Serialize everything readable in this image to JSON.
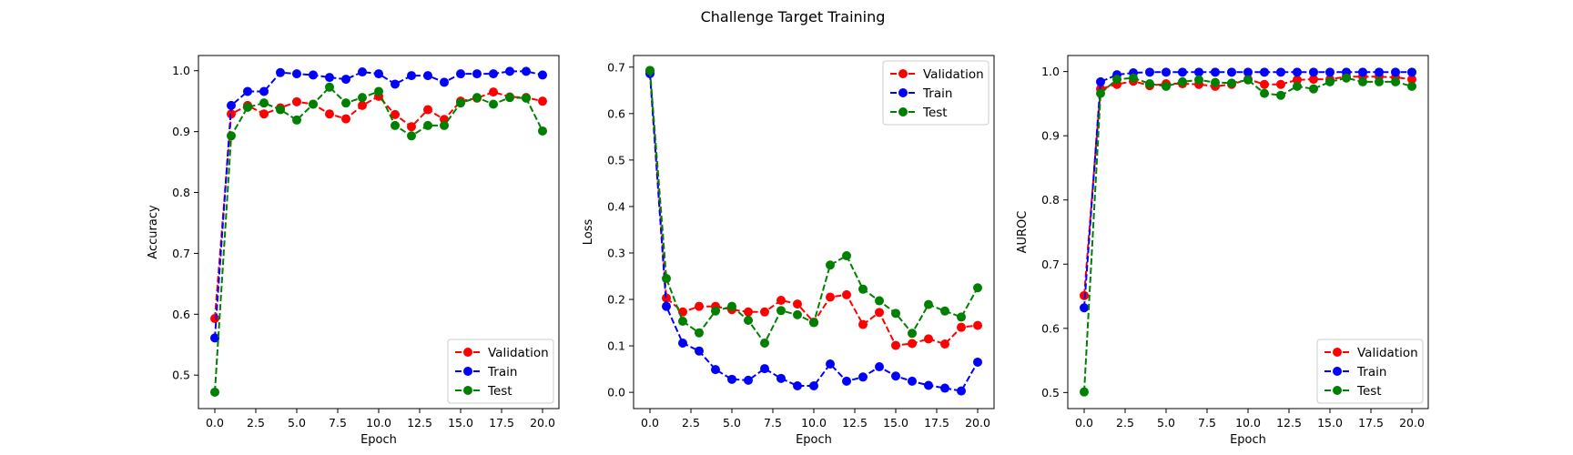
{
  "chart_data": {
    "title": "Challenge Target Training",
    "type": "line",
    "panels": [
      {
        "type": "line",
        "xlabel": "Epoch",
        "ylabel": "Accuracy",
        "xlim": [
          -1,
          21
        ],
        "ylim": [
          0.445,
          1.025
        ],
        "xticks": [
          "0.0",
          "2.5",
          "5.0",
          "7.5",
          "10.0",
          "12.5",
          "15.0",
          "17.5",
          "20.0"
        ],
        "yticks": [
          "0.5",
          "0.6",
          "0.7",
          "0.8",
          "0.9",
          "1.0"
        ],
        "legend": "lower-right",
        "grid": false,
        "series": [
          {
            "name": "Validation",
            "color": "#ff0000",
            "values": [
              0.593,
              0.929,
              0.943,
              0.929,
              0.939,
              0.949,
              0.945,
              0.929,
              0.921,
              0.943,
              0.958,
              0.928,
              0.908,
              0.936,
              0.92,
              0.95,
              0.955,
              0.965,
              0.957,
              0.956,
              0.95
            ]
          },
          {
            "name": "Train",
            "color": "#0000ff",
            "values": [
              0.561,
              0.943,
              0.966,
              0.966,
              0.997,
              0.995,
              0.993,
              0.989,
              0.986,
              0.998,
              0.995,
              0.978,
              0.992,
              0.992,
              0.981,
              0.995,
              0.995,
              0.995,
              0.999,
              0.999,
              0.993
            ]
          },
          {
            "name": "Test",
            "color": "#008000",
            "values": [
              0.472,
              0.893,
              0.94,
              0.947,
              0.936,
              0.919,
              0.945,
              0.973,
              0.947,
              0.956,
              0.966,
              0.91,
              0.893,
              0.91,
              0.91,
              0.947,
              0.956,
              0.945,
              0.956,
              0.955,
              0.901
            ]
          }
        ]
      },
      {
        "type": "line",
        "xlabel": "Epoch",
        "ylabel": "Loss",
        "xlim": [
          -1,
          21
        ],
        "ylim": [
          -0.035,
          0.725
        ],
        "xticks": [
          "0.0",
          "2.5",
          "5.0",
          "7.5",
          "10.0",
          "12.5",
          "15.0",
          "17.5",
          "20.0"
        ],
        "yticks": [
          "0.0",
          "0.1",
          "0.2",
          "0.3",
          "0.4",
          "0.5",
          "0.6",
          "0.7"
        ],
        "legend": "top-right",
        "grid": false,
        "series": [
          {
            "name": "Validation",
            "color": "#ff0000",
            "values": [
              0.69,
              0.203,
              0.173,
              0.185,
              0.185,
              0.178,
              0.173,
              0.173,
              0.198,
              0.19,
              0.151,
              0.205,
              0.21,
              0.146,
              0.172,
              0.101,
              0.105,
              0.115,
              0.104,
              0.14,
              0.144
            ]
          },
          {
            "name": "Train",
            "color": "#0000ff",
            "values": [
              0.686,
              0.185,
              0.106,
              0.089,
              0.049,
              0.028,
              0.026,
              0.051,
              0.03,
              0.014,
              0.014,
              0.061,
              0.024,
              0.033,
              0.055,
              0.035,
              0.024,
              0.015,
              0.009,
              0.003,
              0.065
            ]
          },
          {
            "name": "Test",
            "color": "#008000",
            "values": [
              0.693,
              0.245,
              0.153,
              0.128,
              0.175,
              0.185,
              0.155,
              0.106,
              0.176,
              0.167,
              0.15,
              0.274,
              0.294,
              0.222,
              0.197,
              0.17,
              0.127,
              0.189,
              0.175,
              0.162,
              0.225
            ]
          }
        ]
      },
      {
        "type": "line",
        "xlabel": "Epoch",
        "ylabel": "AUROC",
        "xlim": [
          -1,
          21
        ],
        "ylim": [
          0.475,
          1.025
        ],
        "xticks": [
          "0.0",
          "2.5",
          "5.0",
          "7.5",
          "10.0",
          "12.5",
          "15.0",
          "17.5",
          "20.0"
        ],
        "yticks": [
          "0.5",
          "0.6",
          "0.7",
          "0.8",
          "0.9",
          "1.0"
        ],
        "legend": "lower-right",
        "grid": false,
        "series": [
          {
            "name": "Validation",
            "color": "#ff0000",
            "values": [
              0.651,
              0.973,
              0.98,
              0.985,
              0.978,
              0.981,
              0.981,
              0.98,
              0.977,
              0.98,
              0.988,
              0.98,
              0.98,
              0.987,
              0.988,
              0.988,
              0.992,
              0.992,
              0.992,
              0.991,
              0.988
            ]
          },
          {
            "name": "Train",
            "color": "#0000ff",
            "values": [
              0.632,
              0.984,
              0.995,
              0.998,
              0.999,
              0.999,
              0.999,
              0.999,
              0.999,
              0.999,
              0.999,
              0.999,
              0.999,
              0.999,
              0.999,
              0.999,
              0.999,
              0.999,
              0.999,
              0.999,
              0.999
            ]
          },
          {
            "name": "Test",
            "color": "#008000",
            "values": [
              0.501,
              0.966,
              0.988,
              0.99,
              0.981,
              0.977,
              0.984,
              0.987,
              0.983,
              0.982,
              0.987,
              0.966,
              0.963,
              0.977,
              0.973,
              0.984,
              0.99,
              0.984,
              0.984,
              0.984,
              0.977
            ]
          }
        ]
      }
    ]
  }
}
